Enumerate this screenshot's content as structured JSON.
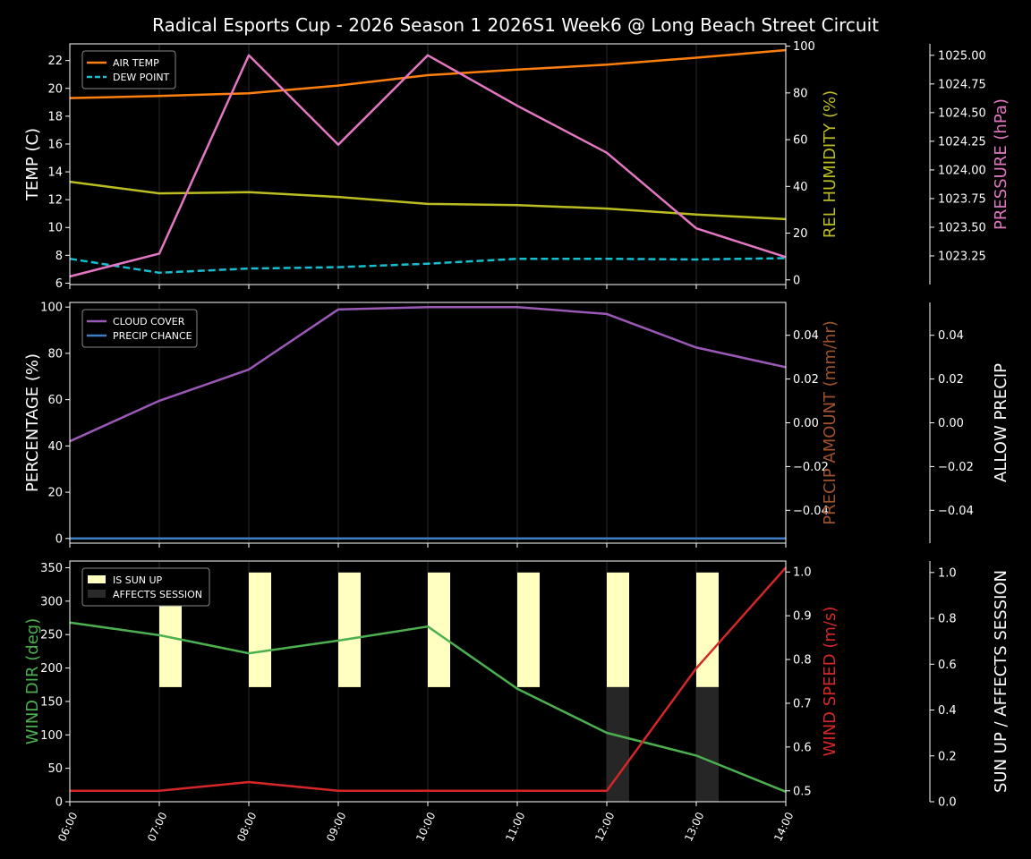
{
  "title": "Radical Esports Cup - 2026 Season 1 2026S1 Week6 @ Long Beach Street Circuit",
  "x_ticks": [
    "06:00",
    "07:00",
    "08:00",
    "09:00",
    "10:00",
    "11:00",
    "12:00",
    "13:00",
    "14:00"
  ],
  "colors": {
    "air_temp": "#ff7f0e",
    "dew_point": "#17becf",
    "humidity": "#bcbd22",
    "pressure": "#e377c2",
    "cloud": "#9b59b6",
    "precip_chance": "#3c7dc4",
    "precip_amount_label": "#a0522d",
    "wind_dir": "#4caf50",
    "wind_speed": "#d62728",
    "sun_up": "#ffffc0",
    "affects": "#262626"
  },
  "chart_data": [
    {
      "type": "line",
      "panel": "weather",
      "x": [
        "06:00",
        "07:00",
        "08:00",
        "09:00",
        "10:00",
        "11:00",
        "12:00",
        "13:00",
        "14:00"
      ],
      "left_axis": {
        "label": "TEMP (C)",
        "ylim": [
          5.9,
          23.2
        ],
        "ticks": [
          "6",
          "8",
          "10",
          "12",
          "14",
          "16",
          "18",
          "20",
          "22"
        ]
      },
      "right_axis_1": {
        "label": "REL HUMIDITY (%)",
        "ylim": [
          -2,
          101
        ],
        "ticks": [
          "0",
          "20",
          "40",
          "60",
          "80",
          "100"
        ]
      },
      "right_axis_2": {
        "label": "PRESSURE (hPa)",
        "ylim": [
          1023.0,
          1025.1
        ],
        "ticks": [
          "1023.25",
          "1023.50",
          "1023.75",
          "1024.00",
          "1024.25",
          "1024.50",
          "1024.75",
          "1025.00"
        ]
      },
      "legend": {
        "placement": "top-left",
        "entries": [
          "AIR TEMP",
          "DEW POINT"
        ]
      },
      "series": [
        {
          "name": "AIR TEMP",
          "axis": "left",
          "values": [
            19.3,
            19.45,
            19.65,
            20.2,
            20.95,
            21.35,
            21.7,
            22.2,
            22.75
          ]
        },
        {
          "name": "DEW POINT",
          "axis": "left",
          "dashed": true,
          "values": [
            7.75,
            6.75,
            7.05,
            7.15,
            7.4,
            7.75,
            7.75,
            7.7,
            7.8
          ]
        },
        {
          "axis": "right1",
          "values": [
            42,
            37,
            37.5,
            35.5,
            32.5,
            32,
            30.5,
            28,
            26
          ]
        },
        {
          "axis": "right2",
          "values": [
            1023.07,
            1023.27,
            1025.0,
            1024.22,
            1025.0,
            1024.56,
            1024.15,
            1023.49,
            1023.24
          ]
        }
      ]
    },
    {
      "type": "line",
      "panel": "precip",
      "x": [
        "06:00",
        "07:00",
        "08:00",
        "09:00",
        "10:00",
        "11:00",
        "12:00",
        "13:00",
        "14:00"
      ],
      "left_axis": {
        "label": "PERCENTAGE (%)",
        "ylim": [
          -2,
          102
        ],
        "ticks": [
          "0",
          "20",
          "40",
          "60",
          "80",
          "100"
        ]
      },
      "right_axis_1": {
        "label": "PRECIP AMOUNT (mm/hr)",
        "ylim": [
          -0.055,
          0.055
        ],
        "ticks": [
          "−0.04",
          "−0.02",
          "0.00",
          "0.02",
          "0.04"
        ]
      },
      "right_axis_2": {
        "label": "ALLOW PRECIP",
        "ylim": [
          -0.055,
          0.055
        ],
        "ticks": [
          "−0.04",
          "−0.02",
          "0.00",
          "0.02",
          "0.04"
        ]
      },
      "legend": {
        "placement": "top-left",
        "entries": [
          "CLOUD COVER",
          "PRECIP CHANCE"
        ]
      },
      "series": [
        {
          "name": "CLOUD COVER",
          "values": [
            42,
            59.5,
            73,
            99,
            100,
            100,
            97,
            82.5,
            74
          ]
        },
        {
          "name": "PRECIP CHANCE",
          "values": [
            0,
            0,
            0,
            0,
            0,
            0,
            0,
            0,
            0
          ]
        }
      ]
    },
    {
      "type": "line",
      "panel": "wind",
      "x": [
        "06:00",
        "07:00",
        "08:00",
        "09:00",
        "10:00",
        "11:00",
        "12:00",
        "13:00",
        "14:00"
      ],
      "left_axis": {
        "label": "WIND DIR (deg)",
        "ylim": [
          0,
          360
        ],
        "ticks": [
          "0",
          "50",
          "100",
          "150",
          "200",
          "250",
          "300",
          "350"
        ]
      },
      "right_axis_1": {
        "label": "WIND SPEED (m/s)",
        "ylim": [
          0.475,
          1.025
        ],
        "ticks": [
          "0.5",
          "0.6",
          "0.7",
          "0.8",
          "0.9",
          "1.0"
        ]
      },
      "right_axis_2": {
        "label": "SUN UP / AFFECTS SESSION",
        "ylim": [
          0,
          1.05
        ],
        "ticks": [
          "0.0",
          "0.2",
          "0.4",
          "0.6",
          "0.8",
          "1.0"
        ]
      },
      "legend": {
        "placement": "top-left",
        "entries": [
          "IS SUN UP",
          "AFFECTS SESSION"
        ]
      },
      "series": [
        {
          "name": "WIND DIR",
          "axis": "left",
          "values": [
            268,
            249,
            222,
            241,
            262,
            169,
            103,
            69,
            15
          ]
        },
        {
          "name": "WIND SPEED",
          "axis": "right1",
          "values": [
            0.5,
            0.5,
            0.52,
            0.5,
            0.5,
            0.5,
            0.5,
            0.78,
            1.01
          ]
        },
        {
          "name": "IS SUN UP",
          "axis": "right2",
          "bar": true,
          "values": [
            0,
            1,
            1,
            1,
            1,
            1,
            1,
            1,
            0
          ]
        },
        {
          "name": "AFFECTS SESSION",
          "axis": "right2",
          "bar": true,
          "values": [
            0,
            0,
            0,
            0,
            0,
            0,
            1,
            1,
            0
          ]
        }
      ]
    }
  ]
}
